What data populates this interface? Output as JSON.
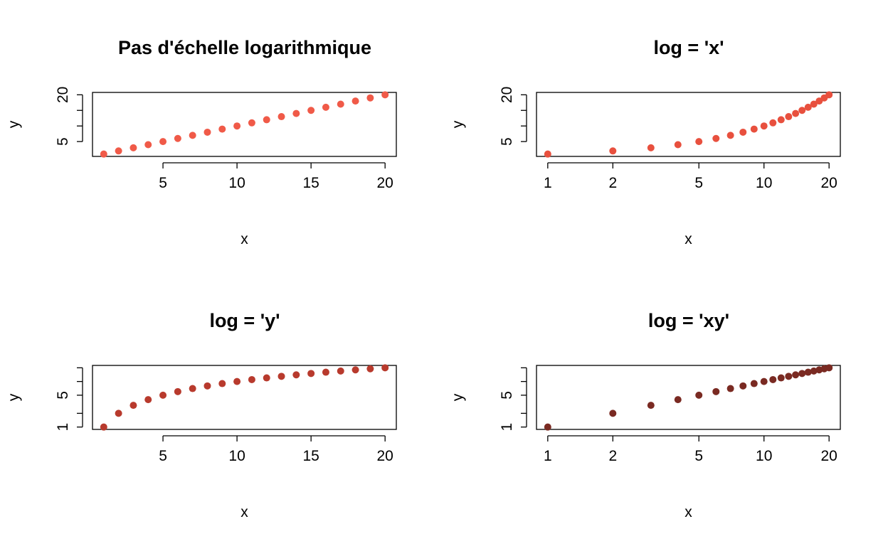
{
  "chart_data": [
    {
      "type": "scatter",
      "title": "Pas d'échelle logarithmique",
      "xlabel": "x",
      "ylabel": "y",
      "log": "",
      "xlim": [
        1,
        20
      ],
      "ylim": [
        1,
        20
      ],
      "xticks": [
        5,
        10,
        15,
        20
      ],
      "yticks": [
        5,
        10,
        15,
        20
      ],
      "ytick_labels": [
        "5",
        "",
        "",
        "20"
      ],
      "point_color": "#F05A48",
      "x": [
        1,
        2,
        3,
        4,
        5,
        6,
        7,
        8,
        9,
        10,
        11,
        12,
        13,
        14,
        15,
        16,
        17,
        18,
        19,
        20
      ],
      "y": [
        1,
        2,
        3,
        4,
        5,
        6,
        7,
        8,
        9,
        10,
        11,
        12,
        13,
        14,
        15,
        16,
        17,
        18,
        19,
        20
      ]
    },
    {
      "type": "scatter",
      "title": "log = 'x'",
      "xlabel": "x",
      "ylabel": "y",
      "log": "x",
      "xlim": [
        1,
        20
      ],
      "ylim": [
        1,
        20
      ],
      "xticks": [
        1,
        2,
        5,
        10,
        20
      ],
      "yticks": [
        5,
        10,
        15,
        20
      ],
      "ytick_labels": [
        "5",
        "",
        "",
        "20"
      ],
      "point_color": "#E8503E",
      "x": [
        1,
        2,
        3,
        4,
        5,
        6,
        7,
        8,
        9,
        10,
        11,
        12,
        13,
        14,
        15,
        16,
        17,
        18,
        19,
        20
      ],
      "y": [
        1,
        2,
        3,
        4,
        5,
        6,
        7,
        8,
        9,
        10,
        11,
        12,
        13,
        14,
        15,
        16,
        17,
        18,
        19,
        20
      ]
    },
    {
      "type": "scatter",
      "title": "log = 'y'",
      "xlabel": "x",
      "ylabel": "y",
      "log": "y",
      "xlim": [
        1,
        20
      ],
      "ylim": [
        1,
        20
      ],
      "xticks": [
        5,
        10,
        15,
        20
      ],
      "yticks": [
        1,
        2,
        5,
        10,
        20
      ],
      "ytick_labels": [
        "1",
        "",
        "5",
        "",
        ""
      ],
      "point_color": "#B83A2D",
      "x": [
        1,
        2,
        3,
        4,
        5,
        6,
        7,
        8,
        9,
        10,
        11,
        12,
        13,
        14,
        15,
        16,
        17,
        18,
        19,
        20
      ],
      "y": [
        1,
        2,
        3,
        4,
        5,
        6,
        7,
        8,
        9,
        10,
        11,
        12,
        13,
        14,
        15,
        16,
        17,
        18,
        19,
        20
      ]
    },
    {
      "type": "scatter",
      "title": "log = 'xy'",
      "xlabel": "x",
      "ylabel": "y",
      "log": "xy",
      "xlim": [
        1,
        20
      ],
      "ylim": [
        1,
        20
      ],
      "xticks": [
        1,
        2,
        5,
        10,
        20
      ],
      "yticks": [
        1,
        2,
        5,
        10,
        20
      ],
      "ytick_labels": [
        "1",
        "",
        "5",
        "",
        ""
      ],
      "point_color": "#7A2A22",
      "x": [
        1,
        2,
        3,
        4,
        5,
        6,
        7,
        8,
        9,
        10,
        11,
        12,
        13,
        14,
        15,
        16,
        17,
        18,
        19,
        20
      ],
      "y": [
        1,
        2,
        3,
        4,
        5,
        6,
        7,
        8,
        9,
        10,
        11,
        12,
        13,
        14,
        15,
        16,
        17,
        18,
        19,
        20
      ]
    }
  ]
}
